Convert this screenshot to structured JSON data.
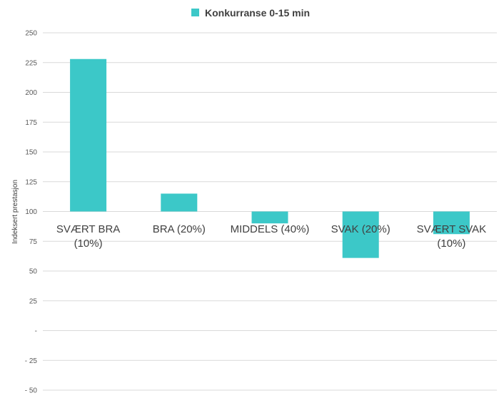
{
  "chart_data": {
    "type": "bar",
    "ylabel": "Indeksert prestasjon",
    "baseline": 100,
    "ylim": [
      -50,
      250
    ],
    "ytick_values": [
      -50,
      -25,
      0,
      25,
      50,
      75,
      100,
      125,
      150,
      175,
      200,
      225,
      250
    ],
    "ytick_labels": [
      "- 50",
      "- 25",
      "-",
      "25",
      "50",
      "75",
      "100",
      "125",
      "150",
      "175",
      "200",
      "225",
      "250"
    ],
    "categories": [
      [
        "SVÆRT BRA",
        "(10%)"
      ],
      [
        "BRA (20%)"
      ],
      [
        "MIDDELS (40%)"
      ],
      [
        "SVAK (20%)"
      ],
      [
        "SVÆRT SVAK",
        "(10%)"
      ]
    ],
    "series": [
      {
        "name": "Konkurranse 0-15 min",
        "color": "#3cc8c8",
        "values": [
          228,
          115,
          90,
          61,
          81
        ]
      }
    ],
    "grid": true,
    "legend": "top-center"
  }
}
